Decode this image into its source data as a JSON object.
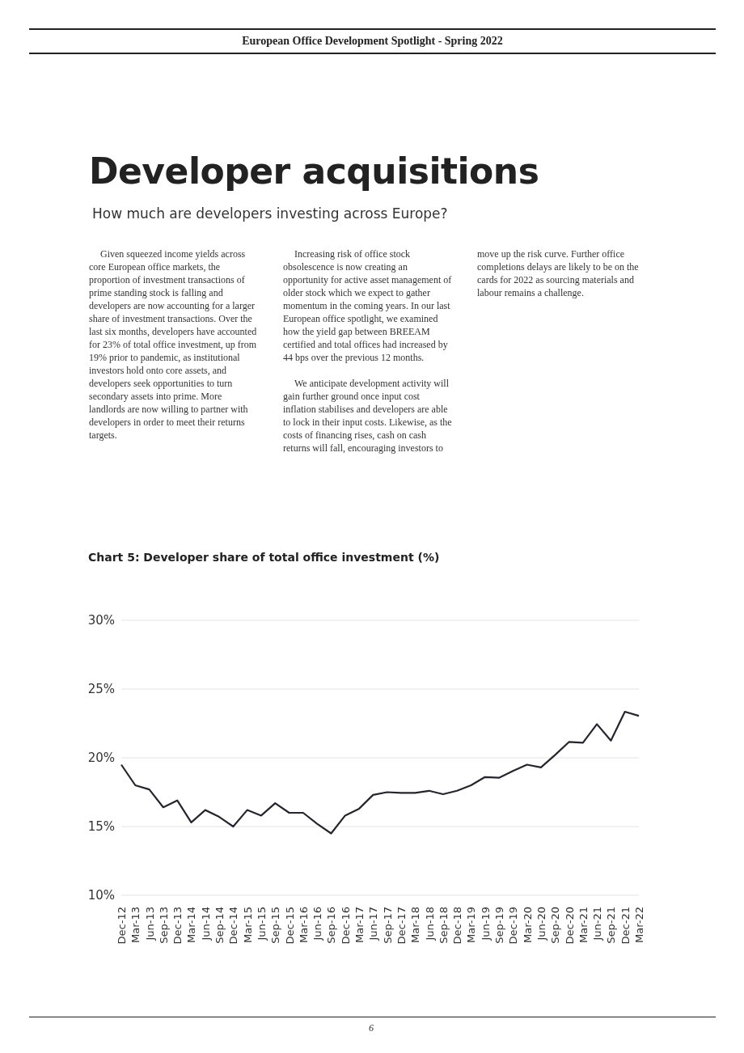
{
  "chart_data": {
    "type": "line",
    "title": "Chart 5: Developer share of total office investment (%)",
    "annotations": [
      "European Office Development Spotlight - Spring 2022",
      "Developer acquisitions",
      "How much are developers investing across Europe?",
      "Given squeezed income yields across core European office markets, the proportion of investment transactions of prime standing stock is falling and developers are now accounting for a larger share of investment transactions. Over the last six months, developers have accounted for 23% of total office investment, up from 19% prior to pandemic, as institutional investors hold onto core assets, and developers seek opportunities to turn secondary assets into prime. More landlords are now willing to partner with developers in order to meet their returns targets.",
      "Increasing risk of office stock obsolescence is now creating an opportunity for active asset management of older stock which we expect to gather momentum in the coming years. In our last European office spotlight, we examined how the yield gap between BREEAM certified and total offices had increased by 44 bps over the previous 12 months.",
      "We anticipate development activity will gain further ground once input cost inflation stabilises and developers are able to lock in their input costs. Likewise, as the costs of financing rises, cash on cash returns will fall, encouraging investors to move up the risk curve. Further office completions delays are likely to be on the cards for 2022 as sourcing materials and labour remains a challenge.",
      "6"
    ],
    "categories": [
      "Dec-12",
      "Mar-13",
      "Jun-13",
      "Sep-13",
      "Dec-13",
      "Mar-14",
      "Jun-14",
      "Sep-14",
      "Dec-14",
      "Mar-15",
      "Jun-15",
      "Sep-15",
      "Dec-15",
      "Mar-16",
      "Jun-16",
      "Sep-16",
      "Dec-16",
      "Mar-17",
      "Jun-17",
      "Sep-17",
      "Dec-17",
      "Mar-18",
      "Jun-18",
      "Sep-18",
      "Dec-18",
      "Mar-19",
      "Jun-19",
      "Sep-19",
      "Dec-19",
      "Mar-20",
      "Jun-20",
      "Sep-20",
      "Dec-20",
      "Mar-21",
      "Jun-21",
      "Sep-21",
      "Dec-21",
      "Mar-22"
    ],
    "series": [
      {
        "color": "#25252f",
        "values": [
          19.5,
          18.0,
          17.7,
          16.4,
          16.9,
          15.3,
          16.2,
          15.7,
          15.0,
          16.2,
          15.8,
          16.7,
          16.0,
          16.0,
          15.2,
          14.5,
          15.8,
          16.3,
          17.3,
          17.5,
          17.45,
          17.45,
          17.6,
          17.35,
          17.6,
          18.0,
          18.6,
          18.55,
          19.05,
          19.5,
          19.3,
          20.2,
          21.15,
          21.1,
          22.45,
          21.25,
          23.35,
          23.05
        ]
      }
    ],
    "ylim": [
      10,
      30
    ],
    "yticks": [
      {
        "value": 10,
        "label": "10%"
      },
      {
        "value": 15,
        "label": "15%"
      },
      {
        "value": 20,
        "label": "20%"
      },
      {
        "value": 25,
        "label": "25%"
      },
      {
        "value": 30,
        "label": "30%"
      }
    ],
    "grid": "y",
    "marker": "none",
    "line_style": "solid"
  }
}
